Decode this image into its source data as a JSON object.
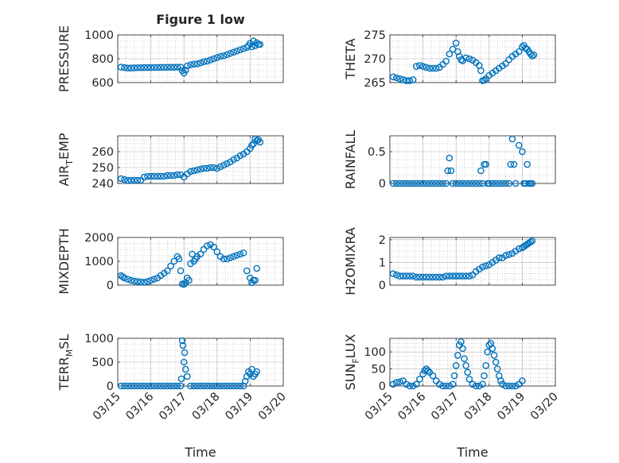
{
  "figure": {
    "title": "Figure 1 low",
    "xlabel": "Time",
    "marker_color": "#0072BD",
    "axis_color": "#262626",
    "grid_color": "#b0b0b0",
    "x_ticks": [
      "03/15",
      "03/16",
      "03/17",
      "03/18",
      "03/19",
      "03/20"
    ]
  },
  "chart_data": [
    {
      "type": "scatter",
      "id": "pressure",
      "ylabel_main": "PRESSURE",
      "ylabel_sub": "",
      "xlim": [
        "03/15",
        "03/20"
      ],
      "ylim": [
        600,
        1000
      ],
      "yticks": [
        "600",
        "800",
        "1000"
      ],
      "ytick_values": [
        600,
        800,
        1000
      ],
      "x": [
        0.1,
        0.2,
        0.3,
        0.4,
        0.5,
        0.6,
        0.7,
        0.8,
        0.9,
        1.0,
        1.1,
        1.2,
        1.3,
        1.4,
        1.5,
        1.6,
        1.7,
        1.8,
        1.9,
        1.95,
        2.0,
        2.05,
        2.1,
        2.2,
        2.3,
        2.4,
        2.5,
        2.6,
        2.7,
        2.8,
        2.9,
        3.0,
        3.1,
        3.2,
        3.3,
        3.4,
        3.5,
        3.6,
        3.7,
        3.8,
        3.9,
        3.95,
        4.0,
        4.05,
        4.1,
        4.15,
        4.2,
        4.25,
        4.3
      ],
      "y": [
        730,
        726,
        722,
        722,
        724,
        725,
        725,
        726,
        726,
        726,
        727,
        727,
        728,
        728,
        729,
        729,
        729,
        730,
        730,
        700,
        680,
        705,
        740,
        750,
        755,
        758,
        765,
        775,
        780,
        790,
        800,
        810,
        820,
        825,
        835,
        845,
        855,
        865,
        875,
        885,
        895,
        910,
        930,
        900,
        950,
        910,
        935,
        920,
        920
      ]
    },
    {
      "type": "scatter",
      "id": "theta",
      "ylabel_main": "THETA",
      "ylabel_sub": "",
      "xlim": [
        "03/15",
        "03/20"
      ],
      "ylim": [
        265,
        275
      ],
      "yticks": [
        "265",
        "270",
        "275"
      ],
      "ytick_values": [
        265,
        270,
        275
      ],
      "x": [
        0.1,
        0.2,
        0.3,
        0.4,
        0.5,
        0.6,
        0.7,
        0.8,
        0.9,
        1.0,
        1.1,
        1.2,
        1.3,
        1.4,
        1.5,
        1.6,
        1.7,
        1.8,
        1.9,
        2.0,
        2.05,
        2.1,
        2.15,
        2.2,
        2.3,
        2.4,
        2.5,
        2.6,
        2.7,
        2.75,
        2.8,
        2.85,
        2.9,
        3.0,
        3.1,
        3.2,
        3.3,
        3.4,
        3.5,
        3.6,
        3.7,
        3.8,
        3.9,
        4.0,
        4.05,
        4.1,
        4.15,
        4.2,
        4.25,
        4.3,
        4.35
      ],
      "y": [
        266.2,
        266.0,
        265.8,
        265.6,
        265.4,
        265.4,
        265.6,
        268.4,
        268.6,
        268.4,
        268.2,
        268.0,
        268.0,
        268.0,
        268.2,
        268.8,
        269.5,
        271.0,
        272.0,
        273.3,
        271.5,
        270.5,
        269.8,
        269.6,
        270.2,
        270.0,
        269.7,
        269.2,
        268.6,
        267.5,
        265.4,
        265.5,
        265.8,
        266.5,
        267.0,
        267.5,
        268.0,
        268.5,
        269.0,
        269.8,
        270.5,
        271.0,
        271.5,
        272.5,
        272.8,
        272.2,
        272.0,
        271.5,
        271.0,
        270.6,
        270.8
      ]
    },
    {
      "type": "scatter",
      "id": "air_temp",
      "ylabel_main": "AIR",
      "ylabel_sub": "T",
      "ylabel_tail": "EMP",
      "xlim": [
        "03/15",
        "03/20"
      ],
      "ylim": [
        240,
        270
      ],
      "yticks": [
        "240",
        "250",
        "260"
      ],
      "ytick_values": [
        240,
        250,
        260
      ],
      "x": [
        0.1,
        0.2,
        0.3,
        0.4,
        0.5,
        0.6,
        0.7,
        0.8,
        0.9,
        1.0,
        1.1,
        1.2,
        1.3,
        1.4,
        1.5,
        1.6,
        1.7,
        1.8,
        1.9,
        2.0,
        2.1,
        2.2,
        2.3,
        2.4,
        2.5,
        2.6,
        2.7,
        2.8,
        2.9,
        3.0,
        3.1,
        3.2,
        3.3,
        3.4,
        3.5,
        3.6,
        3.7,
        3.8,
        3.9,
        4.0,
        4.05,
        4.1,
        4.15,
        4.2,
        4.25,
        4.3
      ],
      "y": [
        243,
        242.5,
        242,
        242,
        242,
        242,
        242,
        244,
        244.5,
        244.5,
        244.5,
        244.5,
        244.5,
        244.5,
        245,
        245,
        245,
        245.5,
        245.5,
        244,
        246,
        247.5,
        248,
        248.5,
        249,
        249.5,
        249.5,
        250,
        250,
        249.5,
        250.5,
        251.5,
        252.5,
        253.5,
        255,
        256,
        257.5,
        258.5,
        260,
        262,
        264,
        265,
        268,
        267,
        267.5,
        266
      ]
    },
    {
      "type": "scatter",
      "id": "rainfall",
      "ylabel_main": "RAINFALL",
      "ylabel_sub": "",
      "xlim": [
        "03/15",
        "03/20"
      ],
      "ylim": [
        0,
        0.75
      ],
      "yticks": [
        "0",
        "0.5"
      ],
      "ytick_values": [
        0,
        0.5
      ],
      "x": [
        0.1,
        0.2,
        0.3,
        0.4,
        0.5,
        0.6,
        0.7,
        0.8,
        0.9,
        1.0,
        1.1,
        1.2,
        1.3,
        1.4,
        1.5,
        1.6,
        1.7,
        1.75,
        1.8,
        1.85,
        1.9,
        2.0,
        2.1,
        2.2,
        2.3,
        2.4,
        2.5,
        2.6,
        2.7,
        2.75,
        2.8,
        2.85,
        2.9,
        2.95,
        3.0,
        3.1,
        3.2,
        3.3,
        3.4,
        3.5,
        3.6,
        3.65,
        3.7,
        3.75,
        3.8,
        3.9,
        4.0,
        4.05,
        4.1,
        4.15,
        4.2,
        4.25,
        4.3
      ],
      "y": [
        0,
        0,
        0,
        0,
        0,
        0,
        0,
        0,
        0,
        0,
        0,
        0,
        0,
        0,
        0,
        0,
        0,
        0.2,
        0.4,
        0.2,
        0,
        0,
        0,
        0,
        0,
        0,
        0,
        0,
        0,
        0.2,
        0,
        0.3,
        0.3,
        0,
        0,
        0,
        0,
        0,
        0,
        0,
        0,
        0.3,
        0.7,
        0.3,
        0,
        0.6,
        0.5,
        0,
        0,
        0.3,
        0,
        0,
        0
      ]
    },
    {
      "type": "scatter",
      "id": "mixdepth",
      "ylabel_main": "MIXDEPTH",
      "ylabel_sub": "",
      "xlim": [
        "03/15",
        "03/20"
      ],
      "ylim": [
        0,
        2000
      ],
      "yticks": [
        "0",
        "1000",
        "2000"
      ],
      "ytick_values": [
        0,
        1000,
        2000
      ],
      "x": [
        0.1,
        0.15,
        0.2,
        0.3,
        0.4,
        0.5,
        0.6,
        0.7,
        0.8,
        0.9,
        1.0,
        1.1,
        1.2,
        1.3,
        1.4,
        1.5,
        1.6,
        1.7,
        1.8,
        1.85,
        1.9,
        1.95,
        2.0,
        2.05,
        2.1,
        2.15,
        2.2,
        2.25,
        2.3,
        2.35,
        2.4,
        2.5,
        2.6,
        2.7,
        2.8,
        2.9,
        3.0,
        3.1,
        3.2,
        3.3,
        3.4,
        3.5,
        3.6,
        3.7,
        3.8,
        3.9,
        4.0,
        4.05,
        4.1,
        4.15,
        4.2
      ],
      "y": [
        400,
        350,
        300,
        250,
        200,
        170,
        150,
        130,
        120,
        150,
        200,
        250,
        300,
        400,
        500,
        600,
        800,
        1000,
        1200,
        1100,
        600,
        50,
        30,
        100,
        300,
        200,
        900,
        1300,
        1000,
        1100,
        1200,
        1300,
        1500,
        1650,
        1700,
        1600,
        1400,
        1200,
        1100,
        1100,
        1150,
        1200,
        1250,
        1300,
        1350,
        600,
        300,
        100,
        200,
        200,
        700
      ]
    },
    {
      "type": "scatter",
      "id": "h2omixra",
      "ylabel_main": "H2OMIXRA",
      "ylabel_sub": "",
      "xlim": [
        "03/15",
        "03/20"
      ],
      "ylim": [
        0,
        2.1
      ],
      "yticks": [
        "0",
        "1",
        "2"
      ],
      "ytick_values": [
        0,
        1,
        2
      ],
      "x": [
        0.1,
        0.2,
        0.3,
        0.4,
        0.5,
        0.6,
        0.7,
        0.8,
        0.9,
        1.0,
        1.1,
        1.2,
        1.3,
        1.4,
        1.5,
        1.6,
        1.7,
        1.8,
        1.9,
        2.0,
        2.1,
        2.2,
        2.3,
        2.4,
        2.5,
        2.6,
        2.7,
        2.8,
        2.9,
        3.0,
        3.1,
        3.2,
        3.3,
        3.4,
        3.5,
        3.6,
        3.7,
        3.8,
        3.9,
        4.0,
        4.05,
        4.1,
        4.15,
        4.2,
        4.25,
        4.3
      ],
      "y": [
        0.5,
        0.45,
        0.4,
        0.4,
        0.4,
        0.4,
        0.4,
        0.35,
        0.35,
        0.35,
        0.35,
        0.35,
        0.35,
        0.35,
        0.35,
        0.35,
        0.4,
        0.4,
        0.4,
        0.4,
        0.4,
        0.4,
        0.4,
        0.4,
        0.45,
        0.6,
        0.7,
        0.8,
        0.85,
        0.9,
        1.0,
        1.1,
        1.2,
        1.2,
        1.3,
        1.35,
        1.4,
        1.5,
        1.6,
        1.65,
        1.7,
        1.75,
        1.8,
        1.85,
        1.9,
        1.95
      ]
    },
    {
      "type": "scatter",
      "id": "terr_msl",
      "ylabel_main": "TERR",
      "ylabel_sub": "M",
      "ylabel_tail": "SL",
      "xlim": [
        "03/15",
        "03/20"
      ],
      "ylim": [
        0,
        1000
      ],
      "yticks": [
        "0",
        "500",
        "1000"
      ],
      "ytick_values": [
        0,
        500,
        1000
      ],
      "x": [
        0.1,
        0.2,
        0.3,
        0.4,
        0.5,
        0.6,
        0.7,
        0.8,
        0.9,
        1.0,
        1.1,
        1.2,
        1.3,
        1.4,
        1.5,
        1.6,
        1.7,
        1.8,
        1.9,
        1.92,
        1.95,
        1.97,
        2.0,
        2.02,
        2.05,
        2.1,
        2.2,
        2.3,
        2.4,
        2.5,
        2.6,
        2.7,
        2.8,
        2.9,
        3.0,
        3.1,
        3.2,
        3.3,
        3.4,
        3.5,
        3.6,
        3.7,
        3.8,
        3.85,
        3.9,
        3.95,
        4.0,
        4.05,
        4.1,
        4.15,
        4.2
      ],
      "y": [
        0,
        0,
        0,
        0,
        0,
        0,
        0,
        0,
        0,
        0,
        0,
        0,
        0,
        0,
        0,
        0,
        0,
        0,
        0,
        150,
        950,
        850,
        500,
        700,
        350,
        200,
        0,
        0,
        0,
        0,
        0,
        0,
        0,
        0,
        0,
        0,
        0,
        0,
        0,
        0,
        0,
        0,
        0,
        100,
        200,
        300,
        250,
        350,
        200,
        250,
        300
      ]
    },
    {
      "type": "scatter",
      "id": "sun_flux",
      "ylabel_main": "SUN",
      "ylabel_sub": "F",
      "ylabel_tail": "LUX",
      "xlim": [
        "03/15",
        "03/20"
      ],
      "ylim": [
        0,
        140
      ],
      "yticks": [
        "0",
        "50",
        "100"
      ],
      "ytick_values": [
        0,
        50,
        100
      ],
      "x": [
        0.1,
        0.2,
        0.3,
        0.4,
        0.5,
        0.6,
        0.7,
        0.8,
        0.9,
        1.0,
        1.05,
        1.1,
        1.15,
        1.2,
        1.3,
        1.4,
        1.5,
        1.6,
        1.7,
        1.8,
        1.9,
        1.95,
        2.0,
        2.05,
        2.1,
        2.15,
        2.2,
        2.25,
        2.3,
        2.35,
        2.4,
        2.5,
        2.6,
        2.7,
        2.8,
        2.85,
        2.9,
        2.95,
        3.0,
        3.05,
        3.1,
        3.15,
        3.2,
        3.25,
        3.3,
        3.35,
        3.4,
        3.5,
        3.6,
        3.7,
        3.8,
        3.9,
        4.0
      ],
      "y": [
        5,
        10,
        12,
        15,
        5,
        0,
        0,
        5,
        20,
        35,
        45,
        50,
        45,
        40,
        30,
        15,
        5,
        0,
        0,
        0,
        5,
        30,
        60,
        90,
        120,
        130,
        110,
        80,
        60,
        40,
        20,
        5,
        0,
        0,
        5,
        30,
        60,
        100,
        120,
        125,
        110,
        90,
        70,
        50,
        30,
        15,
        5,
        0,
        0,
        0,
        0,
        5,
        15
      ]
    }
  ]
}
